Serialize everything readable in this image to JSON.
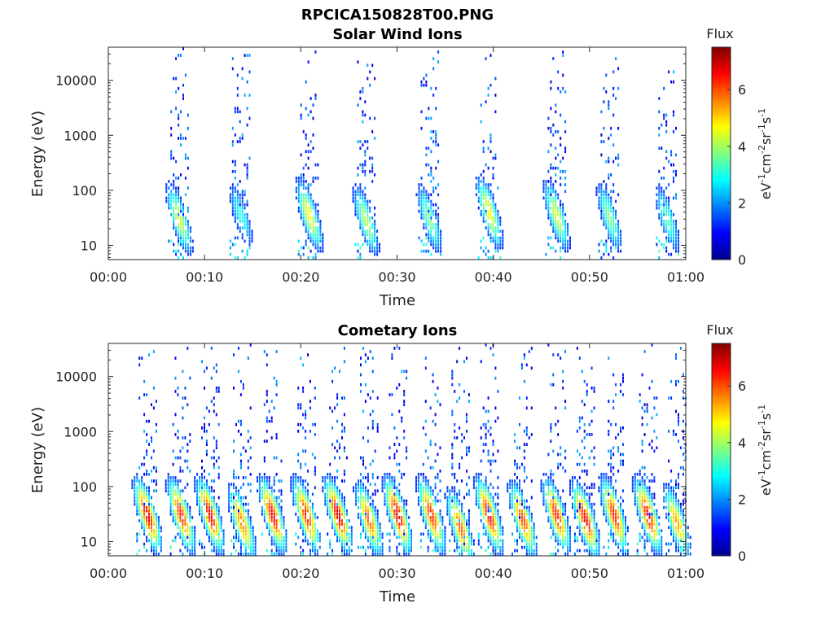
{
  "figure": {
    "suptitle": "RPCICA150828T00.PNG"
  },
  "colorbar": {
    "title": "Flux",
    "label": "eV",
    "ticks": [
      "0",
      "2",
      "4",
      "6"
    ],
    "range": [
      0,
      7.5
    ],
    "colormap": "jet"
  },
  "chart_data": [
    {
      "type": "heatmap",
      "title": "Solar Wind Ions",
      "xlabel": "Time",
      "ylabel": "Energy (eV)",
      "x_ticks": [
        "00:00",
        "00:10",
        "00:20",
        "00:30",
        "00:40",
        "00:50",
        "01:00"
      ],
      "y_ticks": [
        "10",
        "100",
        "1000",
        "10000"
      ],
      "x_range_min": [
        0,
        60
      ],
      "y_range_eV": [
        5.5,
        40000
      ],
      "y_scale": "log",
      "z_range": [
        0,
        7.5
      ],
      "bursts": [
        {
          "t_min": 7.3,
          "peak_eV": 30,
          "peak_flux": 4.5
        },
        {
          "t_min": 13.7,
          "peak_eV": 35,
          "peak_flux": 3.0
        },
        {
          "t_min": 20.8,
          "peak_eV": 35,
          "peak_flux": 4.8
        },
        {
          "t_min": 26.7,
          "peak_eV": 28,
          "peak_flux": 4.2
        },
        {
          "t_min": 33.3,
          "peak_eV": 30,
          "peak_flux": 3.8
        },
        {
          "t_min": 39.5,
          "peak_eV": 40,
          "peak_flux": 4.8
        },
        {
          "t_min": 46.5,
          "peak_eV": 35,
          "peak_flux": 4.5
        },
        {
          "t_min": 52.0,
          "peak_eV": 32,
          "peak_flux": 3.8
        },
        {
          "t_min": 58.0,
          "peak_eV": 30,
          "peak_flux": 3.5
        }
      ]
    },
    {
      "type": "heatmap",
      "title": "Cometary Ions",
      "xlabel": "Time",
      "ylabel": "Energy (eV)",
      "x_ticks": [
        "00:00",
        "00:10",
        "00:20",
        "00:30",
        "00:40",
        "00:50",
        "01:00"
      ],
      "y_ticks": [
        "10",
        "100",
        "1000",
        "10000"
      ],
      "x_range_min": [
        0,
        60
      ],
      "y_range_eV": [
        5.5,
        40000
      ],
      "y_scale": "log",
      "z_range": [
        0,
        7.5
      ],
      "bursts": [
        {
          "t_min": 4.0,
          "peak_eV": 30,
          "peak_flux": 6.8
        },
        {
          "t_min": 7.5,
          "peak_eV": 30,
          "peak_flux": 6.5
        },
        {
          "t_min": 10.5,
          "peak_eV": 30,
          "peak_flux": 6.8
        },
        {
          "t_min": 13.8,
          "peak_eV": 22,
          "peak_flux": 5.8
        },
        {
          "t_min": 17.0,
          "peak_eV": 30,
          "peak_flux": 6.8
        },
        {
          "t_min": 20.5,
          "peak_eV": 30,
          "peak_flux": 6.5
        },
        {
          "t_min": 23.8,
          "peak_eV": 30,
          "peak_flux": 7.0
        },
        {
          "t_min": 27.0,
          "peak_eV": 25,
          "peak_flux": 6.0
        },
        {
          "t_min": 30.0,
          "peak_eV": 30,
          "peak_flux": 7.0
        },
        {
          "t_min": 33.5,
          "peak_eV": 30,
          "peak_flux": 6.5
        },
        {
          "t_min": 36.5,
          "peak_eV": 18,
          "peak_flux": 6.0
        },
        {
          "t_min": 39.5,
          "peak_eV": 30,
          "peak_flux": 6.8
        },
        {
          "t_min": 43.0,
          "peak_eV": 25,
          "peak_flux": 6.2
        },
        {
          "t_min": 46.5,
          "peak_eV": 30,
          "peak_flux": 6.5
        },
        {
          "t_min": 49.5,
          "peak_eV": 25,
          "peak_flux": 6.8
        },
        {
          "t_min": 52.5,
          "peak_eV": 30,
          "peak_flux": 6.5
        },
        {
          "t_min": 56.0,
          "peak_eV": 30,
          "peak_flux": 6.8
        },
        {
          "t_min": 59.0,
          "peak_eV": 22,
          "peak_flux": 5.5
        }
      ]
    }
  ]
}
